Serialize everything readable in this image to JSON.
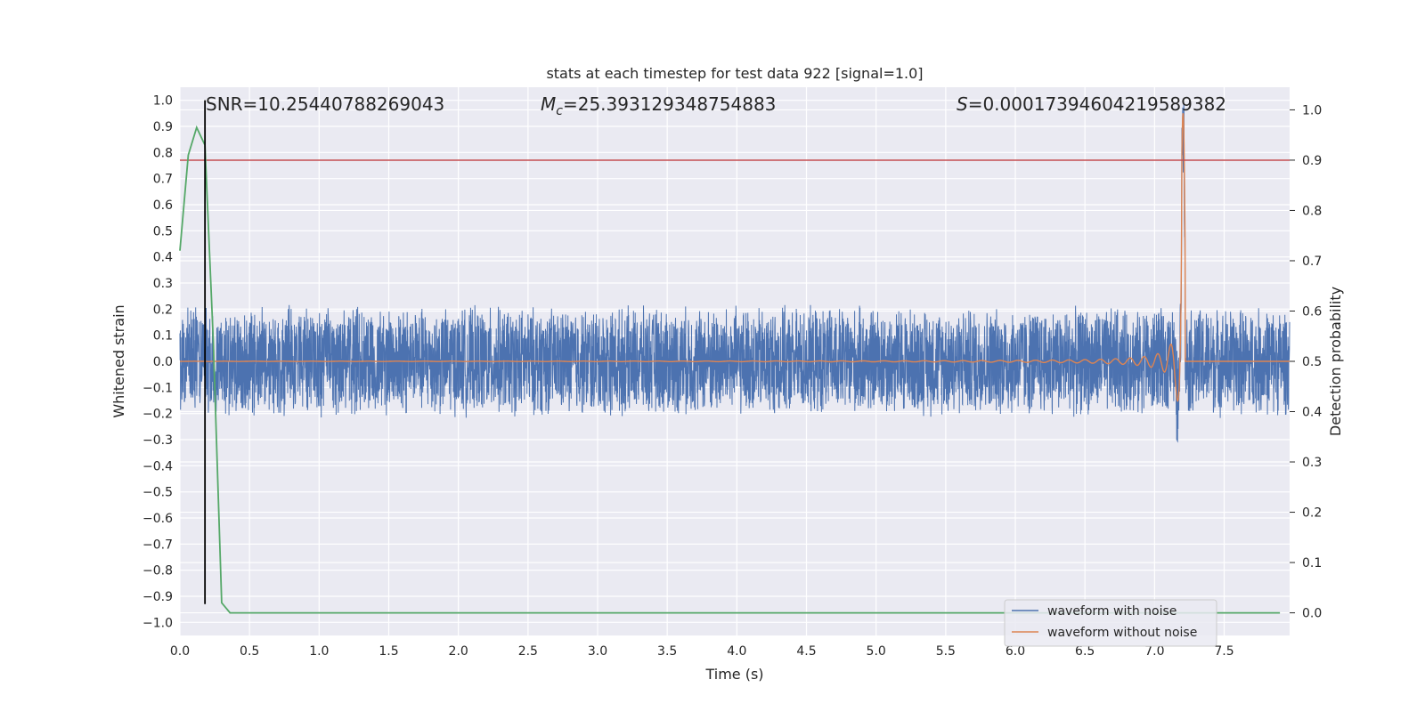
{
  "chart_data": {
    "type": "line",
    "title": "stats at each timestep for test data 922 [signal=1.0]",
    "xlabel": "Time (s)",
    "ylabel": "Whitened strain",
    "y2label": "Detection probability",
    "xlim": [
      0.0,
      7.97
    ],
    "ylim": [
      -1.05,
      1.05
    ],
    "y2lim": [
      -0.045,
      1.045
    ],
    "xticks": [
      "0.0",
      "0.5",
      "1.0",
      "1.5",
      "2.0",
      "2.5",
      "3.0",
      "3.5",
      "4.0",
      "4.5",
      "5.0",
      "5.5",
      "6.0",
      "6.5",
      "7.0",
      "7.5"
    ],
    "yticks": [
      "1.0",
      "0.9",
      "0.8",
      "0.7",
      "0.6",
      "0.5",
      "0.4",
      "0.3",
      "0.2",
      "0.1",
      "0.0",
      "−0.1",
      "−0.2",
      "−0.3",
      "−0.4",
      "−0.5",
      "−0.6",
      "−0.7",
      "−0.8",
      "−0.9",
      "−1.0"
    ],
    "y2ticks": [
      "1.0",
      "0.9",
      "0.8",
      "0.7",
      "0.6",
      "0.5",
      "0.4",
      "0.3",
      "0.2",
      "0.1",
      "0.0"
    ],
    "grid": true,
    "annotations": {
      "snr": "SNR=10.25440788269043",
      "mc_symbol": "M",
      "mc_sub": "c",
      "mc_value": "=25.393129348754883",
      "s_symbol": "S",
      "s_value": "=0.00017394604219589382"
    },
    "series": [
      {
        "name": "waveform with noise",
        "color": "#4c72b0",
        "axis": "left",
        "noise_amplitude": 0.2,
        "merger_time": 7.2
      },
      {
        "name": "waveform without noise",
        "color": "#dd8452",
        "axis": "left",
        "merger_time": 7.2,
        "peak_amplitude": 0.95
      },
      {
        "color": "#55a868",
        "axis": "right",
        "x": [
          0.0,
          0.06,
          0.12,
          0.18,
          0.24,
          0.3,
          0.36,
          0.42,
          7.9
        ],
        "y": [
          0.72,
          0.91,
          0.965,
          0.93,
          0.54,
          0.02,
          0.0,
          0.0,
          0.0
        ]
      }
    ],
    "threshold": {
      "axis": "right",
      "value": 0.9,
      "color": "#c44e52"
    },
    "detection_marker": {
      "x": 0.18,
      "y_from": -0.93,
      "y_to": 1.0,
      "color": "#000000"
    },
    "legend": {
      "position": "bottom-right"
    }
  }
}
